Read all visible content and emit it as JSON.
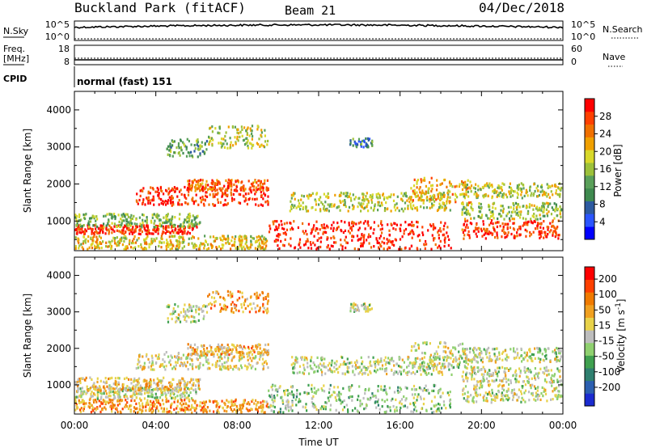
{
  "header": {
    "station": "Buckland Park (fitACF)",
    "beam": "Beam 21",
    "date": "04/Dec/2018"
  },
  "strips": {
    "nsky": {
      "label": "N.Sky",
      "top_tick": "10^5",
      "bottom_tick": "10^0"
    },
    "nsearch": {
      "label": "N.Search",
      "top_tick": "10^5",
      "bottom_tick": "10^0"
    },
    "freq": {
      "label_line1": "Freq.",
      "label_line2": "[MHz]",
      "top_tick": "18",
      "bottom_tick": "8"
    },
    "nave": {
      "label": "Nave",
      "top_tick": "60",
      "bottom_tick": "0"
    },
    "cpid": {
      "label": "CPID",
      "value": "normal (fast) 151"
    }
  },
  "chart_data": [
    {
      "type": "heatmap",
      "panel": "power",
      "ylabel": "Slant Range [km]",
      "ylim": [
        200,
        4500
      ],
      "yticks": [
        "1000",
        "2000",
        "3000",
        "4000"
      ],
      "xlim_hours": [
        0,
        24
      ],
      "xticks_hours": [
        0,
        4,
        8,
        12,
        16,
        20,
        24
      ],
      "colorbar": {
        "label": "Power [dB]",
        "ticks": [
          "4",
          "8",
          "12",
          "16",
          "20",
          "24",
          "28"
        ],
        "colors": [
          "#0000ff",
          "#2b55ff",
          "#2d5aa0",
          "#3f8a4f",
          "#5aa05a",
          "#9cc13a",
          "#d8d82a",
          "#f0a000",
          "#f07000",
          "#ff4000",
          "#ff0000"
        ]
      },
      "echo_bands": [
        {
          "t0": 0.0,
          "t1": 6.0,
          "r_center": 800,
          "r_halfwidth": 120,
          "value": 0.92
        },
        {
          "t0": 0.0,
          "t1": 6.2,
          "r_center": 1050,
          "r_halfwidth": 180,
          "value": 0.45
        },
        {
          "t0": 0.0,
          "t1": 9.5,
          "r_center": 450,
          "r_halfwidth": 180,
          "value": 0.6
        },
        {
          "t0": 3.0,
          "t1": 9.5,
          "r_center": 1700,
          "r_halfwidth": 250,
          "value": 0.9
        },
        {
          "t0": 5.5,
          "t1": 9.5,
          "r_center": 2000,
          "r_halfwidth": 150,
          "value": 0.8
        },
        {
          "t0": 6.5,
          "t1": 9.5,
          "r_center": 3300,
          "r_halfwidth": 300,
          "value": 0.55
        },
        {
          "t0": 4.5,
          "t1": 6.5,
          "r_center": 3000,
          "r_halfwidth": 250,
          "value": 0.4
        },
        {
          "t0": 9.5,
          "t1": 18.5,
          "r_center": 650,
          "r_halfwidth": 380,
          "value": 0.95
        },
        {
          "t0": 10.5,
          "t1": 18.5,
          "r_center": 1550,
          "r_halfwidth": 250,
          "value": 0.55
        },
        {
          "t0": 16.5,
          "t1": 19.5,
          "r_center": 1850,
          "r_halfwidth": 350,
          "value": 0.7
        },
        {
          "t0": 19.0,
          "t1": 23.9,
          "r_center": 800,
          "r_halfwidth": 250,
          "value": 0.9
        },
        {
          "t0": 19.0,
          "t1": 23.9,
          "r_center": 1300,
          "r_halfwidth": 220,
          "value": 0.5
        },
        {
          "t0": 19.0,
          "t1": 23.9,
          "r_center": 1850,
          "r_halfwidth": 200,
          "value": 0.55
        },
        {
          "t0": 13.5,
          "t1": 14.6,
          "r_center": 3150,
          "r_halfwidth": 120,
          "value": 0.3
        }
      ]
    },
    {
      "type": "heatmap",
      "panel": "velocity",
      "ylabel": "Slant Range [km]",
      "xlabel": "Time UT",
      "ylim": [
        200,
        4500
      ],
      "yticks": [
        "1000",
        "2000",
        "3000",
        "4000"
      ],
      "xlim_hours": [
        0,
        24
      ],
      "xticks": [
        "00:00",
        "04:00",
        "08:00",
        "12:00",
        "16:00",
        "20:00",
        "00:00"
      ],
      "colorbar": {
        "label": "Velocity [m s^-1]",
        "ticks": [
          "200",
          "100",
          "50",
          "15",
          "-15",
          "-50",
          "-100",
          "-200"
        ],
        "colors": [
          "#1b2bd0",
          "#2c5fb0",
          "#2f7f6f",
          "#3fa04f",
          "#8fd06f",
          "#bdbdbd",
          "#e8d24a",
          "#f0a020",
          "#f07a00",
          "#ff4000",
          "#ff0000"
        ]
      },
      "echo_bands": [
        {
          "t0": 0.0,
          "t1": 6.0,
          "r_center": 800,
          "r_halfwidth": 150,
          "value": 0.5
        },
        {
          "t0": 0.0,
          "t1": 6.2,
          "r_center": 1050,
          "r_halfwidth": 180,
          "value": 0.62
        },
        {
          "t0": 0.0,
          "t1": 9.5,
          "r_center": 450,
          "r_halfwidth": 180,
          "value": 0.72
        },
        {
          "t0": 3.0,
          "t1": 9.5,
          "r_center": 1700,
          "r_halfwidth": 250,
          "value": 0.55
        },
        {
          "t0": 5.5,
          "t1": 9.5,
          "r_center": 2000,
          "r_halfwidth": 150,
          "value": 0.65
        },
        {
          "t0": 6.5,
          "t1": 9.5,
          "r_center": 3300,
          "r_halfwidth": 300,
          "value": 0.7
        },
        {
          "t0": 4.5,
          "t1": 6.5,
          "r_center": 3000,
          "r_halfwidth": 250,
          "value": 0.5
        },
        {
          "t0": 9.5,
          "t1": 18.5,
          "r_center": 650,
          "r_halfwidth": 380,
          "value": 0.42
        },
        {
          "t0": 10.5,
          "t1": 18.5,
          "r_center": 1550,
          "r_halfwidth": 250,
          "value": 0.5
        },
        {
          "t0": 16.5,
          "t1": 19.5,
          "r_center": 1850,
          "r_halfwidth": 350,
          "value": 0.5
        },
        {
          "t0": 19.0,
          "t1": 23.9,
          "r_center": 800,
          "r_halfwidth": 250,
          "value": 0.5
        },
        {
          "t0": 19.0,
          "t1": 23.9,
          "r_center": 1300,
          "r_halfwidth": 220,
          "value": 0.5
        },
        {
          "t0": 19.0,
          "t1": 23.9,
          "r_center": 1850,
          "r_halfwidth": 200,
          "value": 0.5
        },
        {
          "t0": 13.5,
          "t1": 14.6,
          "r_center": 3150,
          "r_halfwidth": 120,
          "value": 0.5
        }
      ]
    }
  ]
}
